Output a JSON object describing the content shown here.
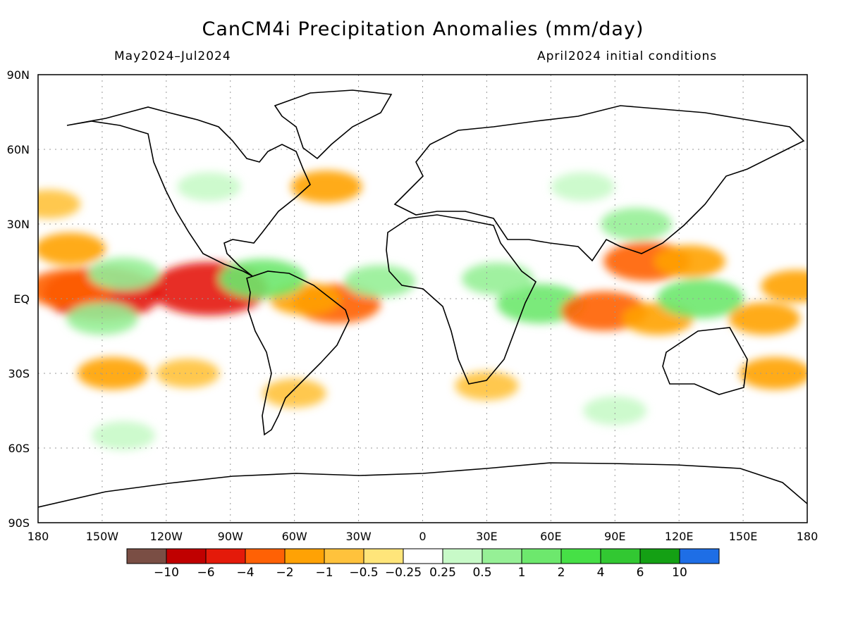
{
  "title": "CanCM4i Precipitation Anomalies (mm/day)",
  "period": "May2024–Jul2024",
  "init": "April2024 initial conditions",
  "lat_labels": [
    "90N",
    "60N",
    "30N",
    "EQ",
    "30S",
    "60S",
    "90S"
  ],
  "lon_labels": [
    "180",
    "150W",
    "120W",
    "90W",
    "60W",
    "30W",
    "0",
    "30E",
    "60E",
    "90E",
    "120E",
    "150E",
    "180"
  ],
  "colorbar": {
    "colors": [
      "#7a4e44",
      "#c00000",
      "#e41a0a",
      "#ff6105",
      "#ffa205",
      "#ffc23c",
      "#ffe57a",
      "#ffffff",
      "#c8fac8",
      "#96f096",
      "#6de86d",
      "#46e046",
      "#32c832",
      "#14a014",
      "#1e6ee6"
    ],
    "labels": [
      "−10",
      "−6",
      "−4",
      "−2",
      "−1",
      "−0.5",
      "−0.25",
      "0.25",
      "0.5",
      "1",
      "2",
      "4",
      "6",
      "10"
    ]
  },
  "anomalies": [
    {
      "lon": -150,
      "lat": 2,
      "value": -4
    },
    {
      "lon": -100,
      "lat": 4,
      "value": -4
    },
    {
      "lon": -165,
      "lat": 4,
      "value": -2
    },
    {
      "lon": -140,
      "lat": 10,
      "value": 1
    },
    {
      "lon": -150,
      "lat": -8,
      "value": 1
    },
    {
      "lon": -145,
      "lat": -30,
      "value": -1
    },
    {
      "lon": -110,
      "lat": -30,
      "value": -0.5
    },
    {
      "lon": -175,
      "lat": 38,
      "value": -0.5
    },
    {
      "lon": -165,
      "lat": 20,
      "value": -1
    },
    {
      "lon": -40,
      "lat": -2,
      "value": -2
    },
    {
      "lon": -55,
      "lat": 0,
      "value": -1
    },
    {
      "lon": -75,
      "lat": 8,
      "value": 2
    },
    {
      "lon": -20,
      "lat": 7,
      "value": 1
    },
    {
      "lon": 55,
      "lat": -2,
      "value": 2
    },
    {
      "lon": 35,
      "lat": 8,
      "value": 1
    },
    {
      "lon": 85,
      "lat": -5,
      "value": -2
    },
    {
      "lon": 110,
      "lat": -8,
      "value": -1
    },
    {
      "lon": 105,
      "lat": 15,
      "value": -2
    },
    {
      "lon": 125,
      "lat": 15,
      "value": -1
    },
    {
      "lon": 130,
      "lat": 0,
      "value": 2
    },
    {
      "lon": 100,
      "lat": 30,
      "value": 1
    },
    {
      "lon": 160,
      "lat": -8,
      "value": -1
    },
    {
      "lon": 175,
      "lat": 5,
      "value": -1
    },
    {
      "lon": 165,
      "lat": -30,
      "value": -1
    },
    {
      "lon": 30,
      "lat": -35,
      "value": -0.5
    },
    {
      "lon": -60,
      "lat": -38,
      "value": -0.5
    },
    {
      "lon": -45,
      "lat": 45,
      "value": -1
    },
    {
      "lon": 90,
      "lat": -45,
      "value": 0.5
    },
    {
      "lon": -140,
      "lat": -55,
      "value": 0.5
    },
    {
      "lon": -100,
      "lat": 45,
      "value": 0.5
    },
    {
      "lon": 75,
      "lat": 45,
      "value": 0.5
    }
  ]
}
